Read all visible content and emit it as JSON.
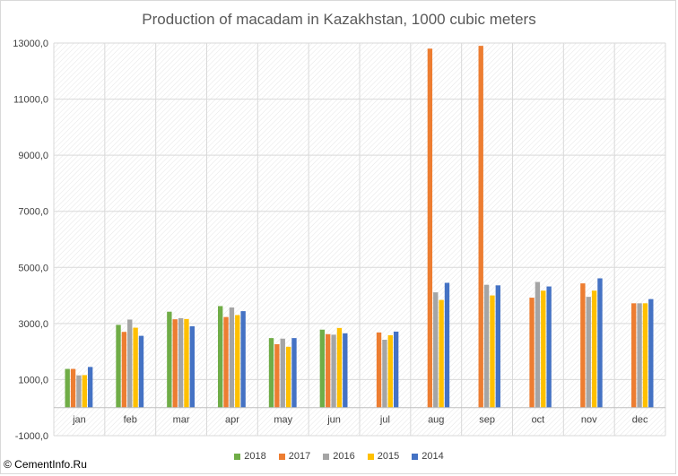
{
  "chart_data": {
    "type": "bar",
    "title": "Production of macadam in Kazakhstan, 1000 cubic meters",
    "xlabel": "",
    "ylabel": "",
    "ylim": [
      -1000,
      13000
    ],
    "yticks": [
      -1000,
      1000,
      3000,
      5000,
      7000,
      9000,
      11000,
      13000
    ],
    "ytick_labels": [
      "-1000,0",
      "1000,0",
      "3000,0",
      "5000,0",
      "7000,0",
      "9000,0",
      "11000,0",
      "13000,0"
    ],
    "categories": [
      "jan",
      "feb",
      "mar",
      "apr",
      "may",
      "jun",
      "jul",
      "aug",
      "sep",
      "oct",
      "nov",
      "dec"
    ],
    "series": [
      {
        "name": "2018",
        "color": "#70ad47",
        "values": [
          1380,
          2950,
          3420,
          3620,
          2480,
          2780,
          null,
          null,
          null,
          null,
          null,
          null
        ]
      },
      {
        "name": "2017",
        "color": "#ed7d31",
        "values": [
          1380,
          2700,
          3150,
          3230,
          2260,
          2620,
          2680,
          12800,
          12900,
          3920,
          4430,
          3720
        ]
      },
      {
        "name": "2016",
        "color": "#a5a5a5",
        "values": [
          1150,
          3140,
          3190,
          3570,
          2460,
          2600,
          2420,
          4110,
          4380,
          4480,
          3950,
          3720
        ]
      },
      {
        "name": "2015",
        "color": "#ffc000",
        "values": [
          1160,
          2850,
          3160,
          3300,
          2170,
          2840,
          2580,
          3840,
          4000,
          4170,
          4170,
          3720
        ]
      },
      {
        "name": "2014",
        "color": "#4472c4",
        "values": [
          1450,
          2560,
          2900,
          3440,
          2480,
          2650,
          2710,
          4450,
          4360,
          4320,
          4610,
          3870
        ]
      }
    ],
    "grid": true,
    "legend_position": "bottom"
  },
  "watermark": "© CementInfo.Ru"
}
